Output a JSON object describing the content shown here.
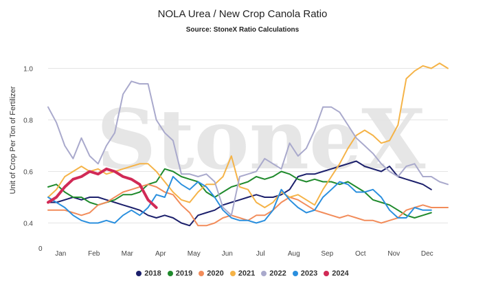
{
  "chart_data": {
    "type": "line",
    "title": "NOLA Urea / New Crop Canola Ratio",
    "subtitle": "Source: StoneX Ratio Calculations",
    "ylabel": "Unit of Crop Per Ton of Fertilizer",
    "ylim": [
      0.3,
      1.1
    ],
    "yticks": [
      0.4,
      0.6,
      0.8,
      1.0
    ],
    "ytick_labels": [
      "0.4",
      "0.6",
      "0.8",
      "1.0"
    ],
    "bottom_label": "0",
    "x_axis": {
      "min": 0,
      "max": 12
    },
    "months": [
      "Jan",
      "Feb",
      "Mar",
      "Apr",
      "May",
      "Jun",
      "Jul",
      "Aug",
      "Sep",
      "Oct",
      "Nov",
      "Dec"
    ],
    "grid": true,
    "watermark": "StoneX",
    "legend_position": "bottom",
    "series": [
      {
        "name": "2018",
        "color": "#1b1f6b",
        "width": 2,
        "x": [
          0,
          0.25,
          0.5,
          0.75,
          1,
          1.25,
          1.5,
          1.75,
          2,
          2.25,
          2.5,
          2.75,
          3,
          3.25,
          3.5,
          3.75,
          4,
          4.25,
          4.5,
          4.75,
          5,
          5.25,
          5.5,
          5.75,
          6,
          6.25,
          6.5,
          6.75,
          7,
          7.25,
          7.5,
          7.75,
          8,
          8.25,
          8.5,
          8.75,
          9,
          9.25,
          9.5,
          9.75,
          10,
          10.25,
          10.5,
          10.75,
          11,
          11.25,
          11.5
        ],
        "y": [
          0.48,
          0.48,
          0.49,
          0.5,
          0.49,
          0.5,
          0.5,
          0.49,
          0.48,
          0.47,
          0.46,
          0.45,
          0.43,
          0.42,
          0.43,
          0.42,
          0.4,
          0.39,
          0.43,
          0.44,
          0.45,
          0.47,
          0.48,
          0.49,
          0.5,
          0.51,
          0.5,
          0.5,
          0.51,
          0.53,
          0.58,
          0.59,
          0.59,
          0.6,
          0.61,
          0.62,
          0.63,
          0.64,
          0.62,
          0.61,
          0.6,
          0.62,
          0.58,
          0.57,
          0.56,
          0.55,
          0.53
        ]
      },
      {
        "name": "2019",
        "color": "#1f8a2c",
        "width": 2,
        "x": [
          0,
          0.25,
          0.5,
          0.75,
          1,
          1.25,
          1.5,
          1.75,
          2,
          2.25,
          2.5,
          2.75,
          3,
          3.25,
          3.5,
          3.75,
          4,
          4.25,
          4.5,
          4.75,
          5,
          5.25,
          5.5,
          5.75,
          6,
          6.25,
          6.5,
          6.75,
          7,
          7.25,
          7.5,
          7.75,
          8,
          8.25,
          8.5,
          8.75,
          9,
          9.25,
          9.5,
          9.75,
          10,
          10.25,
          10.5,
          10.75,
          11,
          11.25,
          11.5
        ],
        "y": [
          0.54,
          0.55,
          0.52,
          0.5,
          0.5,
          0.48,
          0.47,
          0.48,
          0.49,
          0.51,
          0.51,
          0.52,
          0.55,
          0.56,
          0.61,
          0.6,
          0.58,
          0.57,
          0.56,
          0.52,
          0.5,
          0.52,
          0.54,
          0.55,
          0.56,
          0.58,
          0.57,
          0.58,
          0.6,
          0.59,
          0.57,
          0.56,
          0.57,
          0.56,
          0.56,
          0.55,
          0.56,
          0.54,
          0.52,
          0.49,
          0.48,
          0.47,
          0.45,
          0.43,
          0.42,
          0.43,
          0.44
        ]
      },
      {
        "name": "2020",
        "color": "#f28c5a",
        "width": 2,
        "x": [
          0,
          0.25,
          0.5,
          0.75,
          1,
          1.25,
          1.5,
          1.75,
          2,
          2.25,
          2.5,
          2.75,
          3,
          3.25,
          3.5,
          3.75,
          4,
          4.25,
          4.5,
          4.75,
          5,
          5.25,
          5.5,
          5.75,
          6,
          6.25,
          6.5,
          6.75,
          7,
          7.25,
          7.5,
          7.75,
          8,
          8.25,
          8.5,
          8.75,
          9,
          9.25,
          9.5,
          9.75,
          10,
          10.25,
          10.5,
          10.75,
          11,
          11.25,
          11.5,
          11.75,
          12
        ],
        "y": [
          0.45,
          0.45,
          0.45,
          0.44,
          0.43,
          0.44,
          0.47,
          0.48,
          0.5,
          0.52,
          0.53,
          0.54,
          0.55,
          0.54,
          0.52,
          0.51,
          0.47,
          0.44,
          0.39,
          0.39,
          0.4,
          0.42,
          0.43,
          0.42,
          0.41,
          0.43,
          0.43,
          0.45,
          0.48,
          0.5,
          0.49,
          0.47,
          0.45,
          0.44,
          0.43,
          0.42,
          0.43,
          0.42,
          0.41,
          0.41,
          0.4,
          0.41,
          0.42,
          0.45,
          0.46,
          0.47,
          0.46,
          0.46,
          0.46
        ]
      },
      {
        "name": "2021",
        "color": "#f5b347",
        "width": 2,
        "x": [
          0,
          0.25,
          0.5,
          0.75,
          1,
          1.25,
          1.5,
          1.75,
          2,
          2.25,
          2.5,
          2.75,
          3,
          3.25,
          3.5,
          3.75,
          4,
          4.25,
          4.5,
          4.75,
          5,
          5.25,
          5.5,
          5.75,
          6,
          6.25,
          6.5,
          6.75,
          7,
          7.25,
          7.5,
          7.75,
          8,
          8.25,
          8.5,
          8.75,
          9,
          9.25,
          9.5,
          9.75,
          10,
          10.25,
          10.5,
          10.75,
          11,
          11.25,
          11.5,
          11.75,
          12
        ],
        "y": [
          0.5,
          0.53,
          0.58,
          0.6,
          0.62,
          0.6,
          0.61,
          0.59,
          0.6,
          0.61,
          0.62,
          0.63,
          0.63,
          0.6,
          0.56,
          0.52,
          0.49,
          0.48,
          0.52,
          0.55,
          0.55,
          0.58,
          0.66,
          0.54,
          0.53,
          0.48,
          0.46,
          0.48,
          0.52,
          0.5,
          0.51,
          0.49,
          0.47,
          0.53,
          0.58,
          0.63,
          0.69,
          0.74,
          0.76,
          0.74,
          0.71,
          0.72,
          0.78,
          0.96,
          0.99,
          1.01,
          1.0,
          1.02,
          1.0
        ]
      },
      {
        "name": "2022",
        "color": "#a9a9cc",
        "width": 2,
        "x": [
          0,
          0.25,
          0.5,
          0.75,
          1,
          1.25,
          1.5,
          1.75,
          2,
          2.25,
          2.5,
          2.75,
          3,
          3.25,
          3.5,
          3.75,
          4,
          4.25,
          4.5,
          4.75,
          5,
          5.25,
          5.5,
          5.75,
          6,
          6.25,
          6.5,
          6.75,
          7,
          7.25,
          7.5,
          7.75,
          8,
          8.25,
          8.5,
          8.75,
          9,
          9.25,
          9.5,
          9.75,
          10,
          10.25,
          10.5,
          10.75,
          11,
          11.25,
          11.5,
          11.75,
          12
        ],
        "y": [
          0.85,
          0.79,
          0.7,
          0.65,
          0.73,
          0.66,
          0.63,
          0.7,
          0.75,
          0.9,
          0.95,
          0.94,
          0.94,
          0.8,
          0.75,
          0.72,
          0.59,
          0.59,
          0.58,
          0.59,
          0.56,
          0.46,
          0.43,
          0.58,
          0.59,
          0.6,
          0.65,
          0.63,
          0.61,
          0.71,
          0.66,
          0.69,
          0.76,
          0.85,
          0.85,
          0.83,
          0.78,
          0.73,
          0.7,
          0.67,
          0.63,
          0.6,
          0.58,
          0.62,
          0.63,
          0.58,
          0.58,
          0.56,
          0.55
        ]
      },
      {
        "name": "2023",
        "color": "#2a8fde",
        "width": 2,
        "x": [
          0,
          0.25,
          0.5,
          0.75,
          1,
          1.25,
          1.5,
          1.75,
          2,
          2.25,
          2.5,
          2.75,
          3,
          3.25,
          3.5,
          3.75,
          4,
          4.25,
          4.5,
          4.75,
          5,
          5.25,
          5.5,
          5.75,
          6,
          6.25,
          6.5,
          6.75,
          7,
          7.25,
          7.5,
          7.75,
          8,
          8.25,
          8.5,
          8.75,
          9,
          9.25,
          9.5,
          9.75,
          10,
          10.25,
          10.5,
          10.75,
          11,
          11.25,
          11.5
        ],
        "y": [
          0.5,
          0.48,
          0.46,
          0.43,
          0.41,
          0.4,
          0.4,
          0.41,
          0.4,
          0.43,
          0.45,
          0.43,
          0.46,
          0.51,
          0.5,
          0.58,
          0.55,
          0.53,
          0.56,
          0.54,
          0.5,
          0.45,
          0.42,
          0.41,
          0.41,
          0.4,
          0.41,
          0.45,
          0.53,
          0.49,
          0.46,
          0.44,
          0.45,
          0.5,
          0.53,
          0.56,
          0.55,
          0.52,
          0.52,
          0.53,
          0.5,
          0.45,
          0.42,
          0.42,
          0.46,
          0.45,
          0.45
        ]
      },
      {
        "name": "2024",
        "color": "#d12a56",
        "width": 4,
        "x": [
          0,
          0.25,
          0.5,
          0.75,
          1,
          1.25,
          1.5,
          1.75,
          2,
          2.25,
          2.5,
          2.75,
          3,
          3.25
        ],
        "y": [
          0.48,
          0.5,
          0.54,
          0.57,
          0.58,
          0.6,
          0.59,
          0.61,
          0.6,
          0.58,
          0.57,
          0.55,
          0.49,
          0.46
        ]
      }
    ]
  }
}
